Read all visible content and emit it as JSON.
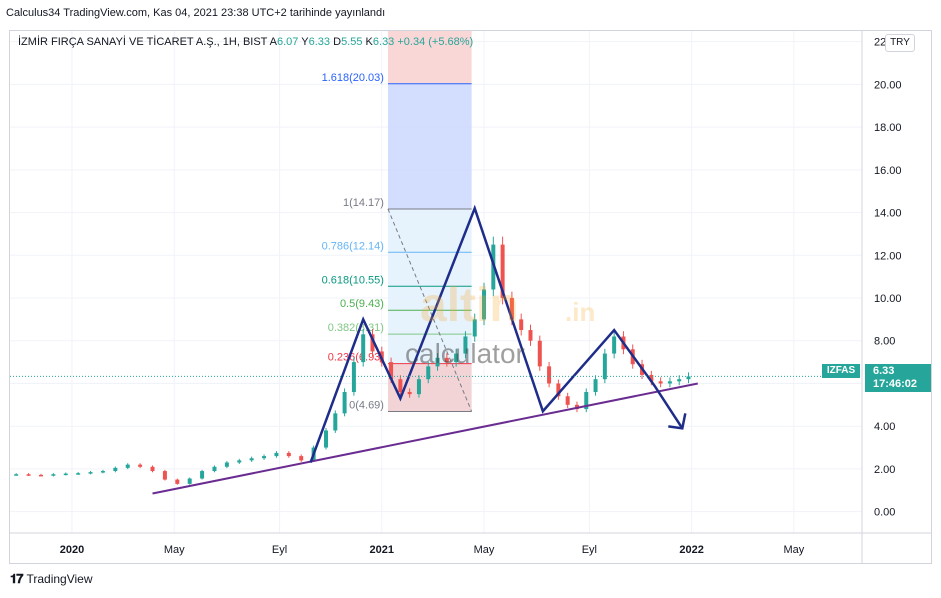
{
  "header": {
    "text": "Calculus34 TradingView.com, Kas 04, 2021 23:38 UTC+2 tarihinde yayınlandı"
  },
  "legend": {
    "symbol": "İZMİR FIRÇA SANAYİ VE TİCARET A.Ş., 1H, BIST",
    "o_label": "A",
    "o_value": "6.07",
    "h_label": "Y",
    "h_value": "6.33",
    "l_label": "D",
    "l_value": "5.55",
    "c_label": "K",
    "c_value": "6.33",
    "change": "+0.34 (+5.68%)"
  },
  "currency": "TRY",
  "last_price": {
    "symbol": "IZFAS",
    "price": "6.33",
    "countdown": "17:46:02"
  },
  "footer": {
    "brand": "TradingView"
  },
  "watermark": {
    "logo_text": "altin",
    "suffix": ".in",
    "sub": "calculator"
  },
  "colors": {
    "up": "#26a69a",
    "down": "#ef5350",
    "pattern": "#1f2d8a",
    "trendline": "#6a2c91",
    "fib_top": "#c8d6ff",
    "fib_zero": "#f7c6c6"
  },
  "chart_data": {
    "type": "candlestick",
    "ylim": [
      -1.0,
      22.5
    ],
    "y_ticks": [
      "22.00",
      "20.00",
      "18.00",
      "16.00",
      "14.00",
      "12.00",
      "10.00",
      "8.00",
      "6.00",
      "4.00",
      "2.00",
      "0.00"
    ],
    "x_ticks": [
      "2020",
      "May",
      "Eyl",
      "2021",
      "May",
      "Eyl",
      "2022",
      "May"
    ],
    "fib_levels": [
      {
        "label": "1.618(20.03)",
        "ratio": 1.618,
        "value": 20.03,
        "color": "#2962ff"
      },
      {
        "label": "1(14.17)",
        "ratio": 1,
        "value": 14.17,
        "color": "#787b86"
      },
      {
        "label": "0.786(12.14)",
        "ratio": 0.786,
        "value": 12.14,
        "color": "#64b5f6"
      },
      {
        "label": "0.618(10.55)",
        "ratio": 0.618,
        "value": 10.55,
        "color": "#089981"
      },
      {
        "label": "0.5(9.43)",
        "ratio": 0.5,
        "value": 9.43,
        "color": "#4caf50"
      },
      {
        "label": "0.382(8.31)",
        "ratio": 0.382,
        "value": 8.31,
        "color": "#81c784"
      },
      {
        "label": "0.236(6.93)",
        "ratio": 0.236,
        "value": 6.93,
        "color": "#f23645"
      },
      {
        "label": "0(4.69)",
        "ratio": 0,
        "value": 4.69,
        "color": "#787b86"
      }
    ],
    "series": [
      {
        "name": "IZFAS",
        "points": [
          [
            2019.82,
            1.75
          ],
          [
            2019.86,
            1.72
          ],
          [
            2019.9,
            1.7
          ],
          [
            2019.94,
            1.75
          ],
          [
            2019.98,
            1.78
          ],
          [
            2020.02,
            1.8
          ],
          [
            2020.06,
            1.85
          ],
          [
            2020.1,
            1.9
          ],
          [
            2020.14,
            2.05
          ],
          [
            2020.18,
            2.2
          ],
          [
            2020.22,
            2.1
          ],
          [
            2020.26,
            1.9
          ],
          [
            2020.3,
            1.5
          ],
          [
            2020.34,
            1.3
          ],
          [
            2020.38,
            1.55
          ],
          [
            2020.42,
            1.9
          ],
          [
            2020.46,
            2.1
          ],
          [
            2020.5,
            2.3
          ],
          [
            2020.54,
            2.4
          ],
          [
            2020.58,
            2.5
          ],
          [
            2020.62,
            2.6
          ],
          [
            2020.66,
            2.75
          ],
          [
            2020.7,
            2.6
          ],
          [
            2020.74,
            2.4
          ],
          [
            2020.78,
            3.0
          ],
          [
            2020.82,
            3.8
          ],
          [
            2020.85,
            4.6
          ],
          [
            2020.88,
            5.6
          ],
          [
            2020.91,
            7.0
          ],
          [
            2020.94,
            8.3
          ],
          [
            2020.97,
            7.5
          ],
          [
            2021.0,
            7.0
          ],
          [
            2021.03,
            6.2
          ],
          [
            2021.06,
            5.6
          ],
          [
            2021.09,
            5.5
          ],
          [
            2021.12,
            6.2
          ],
          [
            2021.15,
            6.8
          ],
          [
            2021.18,
            7.2
          ],
          [
            2021.21,
            7.0
          ],
          [
            2021.24,
            7.4
          ],
          [
            2021.27,
            8.2
          ],
          [
            2021.3,
            9.0
          ],
          [
            2021.33,
            10.4
          ],
          [
            2021.36,
            12.5
          ],
          [
            2021.39,
            10.0
          ],
          [
            2021.42,
            9.0
          ],
          [
            2021.45,
            8.5
          ],
          [
            2021.48,
            8.0
          ],
          [
            2021.51,
            6.8
          ],
          [
            2021.54,
            6.0
          ],
          [
            2021.57,
            5.4
          ],
          [
            2021.6,
            5.0
          ],
          [
            2021.63,
            4.8
          ],
          [
            2021.66,
            5.6
          ],
          [
            2021.69,
            6.2
          ],
          [
            2021.72,
            7.4
          ],
          [
            2021.75,
            8.2
          ],
          [
            2021.78,
            7.6
          ],
          [
            2021.81,
            6.9
          ],
          [
            2021.84,
            6.4
          ],
          [
            2021.87,
            6.1
          ],
          [
            2021.9,
            6.0
          ],
          [
            2021.93,
            6.1
          ],
          [
            2021.96,
            6.2
          ],
          [
            2021.99,
            6.33
          ]
        ]
      }
    ]
  }
}
